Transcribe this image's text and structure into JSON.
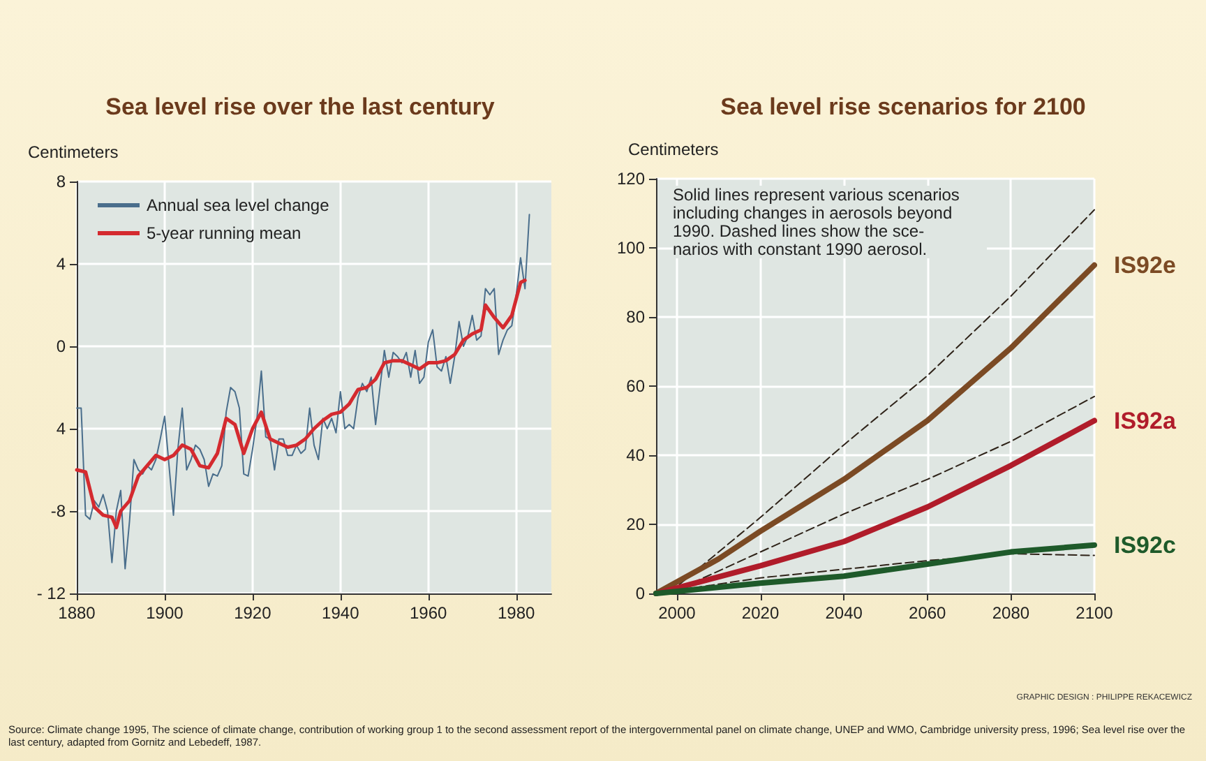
{
  "chart_data": [
    {
      "type": "line",
      "title": "Sea level rise over the last century",
      "ylabel": "Centimeters",
      "xlim": [
        1880,
        1988
      ],
      "xticks": [
        1880,
        1900,
        1920,
        1940,
        1960,
        1980
      ],
      "ylim": [
        -12,
        8
      ],
      "yticks": [
        {
          "value": -12,
          "label": "- 12"
        },
        -8,
        {
          "value": -4,
          "label": "4"
        },
        0,
        4,
        8
      ],
      "grid": true,
      "legend": "top left",
      "marker": "none",
      "series": [
        {
          "name": "Annual sea level change",
          "color": "#4a6e8c",
          "line_style": "solid",
          "x": [
            1880,
            1881,
            1882,
            1883,
            1884,
            1885,
            1886,
            1887,
            1888,
            1889,
            1890,
            1891,
            1892,
            1893,
            1894,
            1895,
            1896,
            1897,
            1898,
            1899,
            1900,
            1901,
            1902,
            1903,
            1904,
            1905,
            1906,
            1907,
            1908,
            1909,
            1910,
            1911,
            1912,
            1913,
            1914,
            1915,
            1916,
            1917,
            1918,
            1919,
            1920,
            1921,
            1922,
            1923,
            1924,
            1925,
            1926,
            1927,
            1928,
            1929,
            1930,
            1931,
            1932,
            1933,
            1934,
            1935,
            1936,
            1937,
            1938,
            1939,
            1940,
            1941,
            1942,
            1943,
            1944,
            1945,
            1946,
            1947,
            1948,
            1949,
            1950,
            1951,
            1952,
            1953,
            1954,
            1955,
            1956,
            1957,
            1958,
            1959,
            1960,
            1961,
            1962,
            1963,
            1964,
            1965,
            1966,
            1967,
            1968,
            1969,
            1970,
            1971,
            1972,
            1973,
            1974,
            1975,
            1976,
            1977,
            1978,
            1979,
            1980,
            1981,
            1982,
            1983
          ],
          "values": [
            -3,
            -3,
            -8.2,
            -8.4,
            -7.5,
            -7.8,
            -7.2,
            -8,
            -10.5,
            -8,
            -7,
            -10.8,
            -8.5,
            -5.5,
            -6,
            -6.2,
            -5.8,
            -6,
            -5.5,
            -4.5,
            -3.4,
            -5.8,
            -8.2,
            -5,
            -3,
            -6,
            -5.5,
            -4.8,
            -5,
            -5.5,
            -6.8,
            -6.2,
            -6.3,
            -5.8,
            -3.2,
            -2,
            -2.2,
            -3,
            -6.2,
            -6.3,
            -5,
            -3.5,
            -1.2,
            -4.4,
            -4.5,
            -6,
            -4.5,
            -4.5,
            -5.3,
            -5.3,
            -4.8,
            -5.2,
            -5,
            -3,
            -4.8,
            -5.5,
            -3.5,
            -4,
            -3.5,
            -4.2,
            -2.2,
            -4,
            -3.8,
            -4,
            -2.5,
            -1.8,
            -2.2,
            -1.5,
            -3.8,
            -2,
            -0.2,
            -1.5,
            -0.3,
            -0.5,
            -0.8,
            -0.3,
            -1.5,
            -0.2,
            -1.8,
            -1.5,
            0.2,
            0.8,
            -1,
            -1.2,
            -0.5,
            -1.8,
            -0.5,
            1.2,
            0,
            0.5,
            1.5,
            0.3,
            0.5,
            2.8,
            2.5,
            2.8,
            -0.4,
            0.3,
            0.8,
            1,
            2.5,
            4.3,
            2.8,
            6.4
          ]
        },
        {
          "name": "5-year running mean",
          "color": "#d42a2f",
          "line_style": "solid",
          "x": [
            1880,
            1882,
            1884,
            1886,
            1888,
            1889,
            1890,
            1892,
            1894,
            1896,
            1898,
            1900,
            1902,
            1904,
            1906,
            1908,
            1910,
            1912,
            1914,
            1916,
            1918,
            1920,
            1922,
            1924,
            1926,
            1928,
            1930,
            1932,
            1934,
            1936,
            1938,
            1940,
            1942,
            1944,
            1946,
            1948,
            1950,
            1952,
            1954,
            1956,
            1958,
            1960,
            1962,
            1964,
            1966,
            1968,
            1970,
            1972,
            1973,
            1975,
            1977,
            1979,
            1981,
            1982
          ],
          "values": [
            -6,
            -6.1,
            -7.8,
            -8.2,
            -8.3,
            -8.8,
            -8,
            -7.5,
            -6.3,
            -5.8,
            -5.3,
            -5.5,
            -5.3,
            -4.8,
            -5,
            -5.8,
            -5.9,
            -5.2,
            -3.5,
            -3.8,
            -5.2,
            -4,
            -3.2,
            -4.5,
            -4.7,
            -4.9,
            -4.8,
            -4.5,
            -4,
            -3.6,
            -3.3,
            -3.2,
            -2.8,
            -2.1,
            -2,
            -1.6,
            -0.8,
            -0.7,
            -0.7,
            -0.9,
            -1.1,
            -0.8,
            -0.8,
            -0.7,
            -0.4,
            0.3,
            0.6,
            0.8,
            2,
            1.4,
            0.9,
            1.5,
            3.1,
            3.2
          ]
        }
      ],
      "annotations": [
        "Source: Climate change 1995, The science of climate change, contribution of working group 1 to the second assessment report of the intergovernmental panel on climate change, UNEP and WMO, Cambridge university press,  1996; Sea level rise over the last century, adapted from Gornitz and Lebedeff, 1987."
      ]
    },
    {
      "type": "line",
      "title": "Sea level rise scenarios for 2100",
      "ylabel": "Centimeters",
      "xlim": [
        1995,
        2100
      ],
      "xticks": [
        2000,
        2020,
        2040,
        2060,
        2080,
        2100
      ],
      "ylim": [
        0,
        120
      ],
      "yticks": [
        0,
        20,
        40,
        60,
        80,
        100,
        120
      ],
      "grid": true,
      "legend": false,
      "marker": "none",
      "series": [
        {
          "color": "#2e2218",
          "line_style": "dashed",
          "x": [
            1995,
            2000,
            2020,
            2040,
            2060,
            2080,
            2100
          ],
          "values": [
            0,
            2,
            22,
            43,
            63,
            86,
            111
          ]
        },
        {
          "name": "IS92e",
          "color": "#7b4a24",
          "line_style": "solid",
          "x": [
            1995,
            2010,
            2020,
            2040,
            2060,
            2080,
            2100
          ],
          "values": [
            0,
            10,
            18,
            33,
            50,
            71,
            95
          ]
        },
        {
          "color": "#2e2218",
          "line_style": "dashed",
          "x": [
            1995,
            2000,
            2020,
            2040,
            2060,
            2080,
            2100
          ],
          "values": [
            0,
            1,
            12,
            23,
            33,
            44,
            57
          ]
        },
        {
          "name": "IS92a",
          "color": "#b01c2a",
          "line_style": "solid",
          "x": [
            1995,
            2020,
            2040,
            2060,
            2080,
            2100
          ],
          "values": [
            0,
            8,
            15,
            25,
            37,
            50
          ]
        },
        {
          "color": "#2e2218",
          "line_style": "dashed",
          "x": [
            1995,
            2020,
            2040,
            2060,
            2080,
            2100
          ],
          "values": [
            0,
            4.5,
            7,
            9.5,
            11.5,
            11
          ]
        },
        {
          "name": "IS92c",
          "color": "#1e5a2a",
          "line_style": "solid",
          "x": [
            1995,
            2020,
            2040,
            2060,
            2080,
            2100
          ],
          "values": [
            0,
            3,
            5,
            8.5,
            12,
            14
          ]
        }
      ],
      "annotations": [
        "Solid lines represent various scenarios including changes in aerosols beyond 1990. Dashed lines show the sce-\nnarios with constant 1990 aerosol.",
        "GRAPHIC DESIGN : PHILIPPE REKACEWICZ"
      ]
    }
  ]
}
